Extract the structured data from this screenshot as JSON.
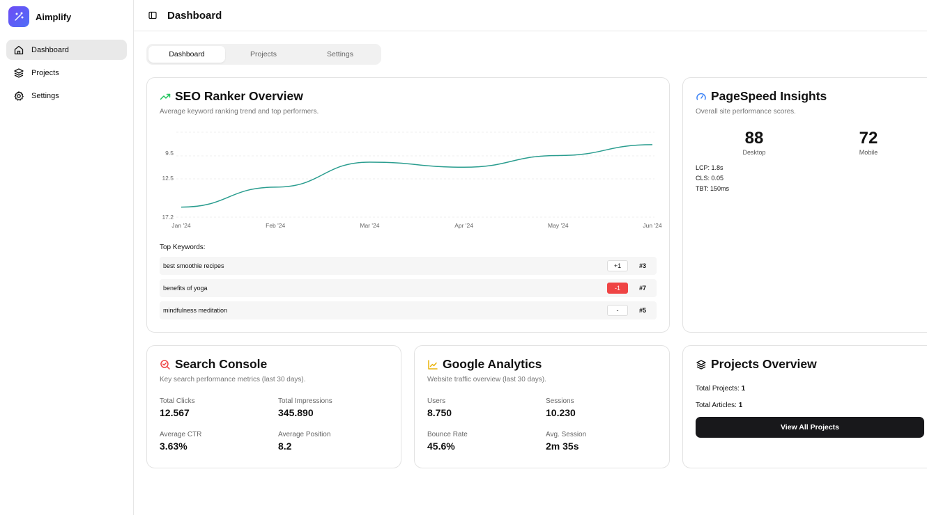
{
  "app": {
    "name": "Aimplify"
  },
  "sidebar": {
    "items": [
      {
        "label": "Dashboard",
        "icon": "home-icon",
        "active": true
      },
      {
        "label": "Projects",
        "icon": "layers-icon",
        "active": false
      },
      {
        "label": "Settings",
        "icon": "gear-icon",
        "active": false
      }
    ]
  },
  "header": {
    "title": "Dashboard"
  },
  "tabs": [
    {
      "label": "Dashboard",
      "active": true
    },
    {
      "label": "Projects",
      "active": false
    },
    {
      "label": "Settings",
      "active": false
    }
  ],
  "seo": {
    "title": "SEO Ranker Overview",
    "subtitle": "Average keyword ranking trend and top performers.",
    "keywords_heading": "Top Keywords:",
    "keywords": [
      {
        "name": "best smoothie recipes",
        "change": "+1",
        "rank": "#3",
        "negative": false
      },
      {
        "name": "benefits of yoga",
        "change": "-1",
        "rank": "#7",
        "negative": true
      },
      {
        "name": "mindfulness meditation",
        "change": "-",
        "rank": "#5",
        "negative": false
      }
    ]
  },
  "chart_data": {
    "type": "line",
    "x": [
      "Jan '24",
      "Feb '24",
      "Mar '24",
      "Apr '24",
      "May '24",
      "Jun '24"
    ],
    "series": [
      {
        "values": [
          16.0,
          13.6,
          10.6,
          11.2,
          9.8,
          8.5
        ]
      }
    ],
    "y_ticks": [
      "9.5",
      "12.5",
      "17.2"
    ],
    "ylim": [
      6.5,
      17.2
    ],
    "y_inverted": true,
    "grid": true,
    "color": "#2a9d8f"
  },
  "pagespeed": {
    "title": "PageSpeed Insights",
    "subtitle": "Overall site performance scores.",
    "scores": [
      {
        "value": "88",
        "label": "Desktop"
      },
      {
        "value": "72",
        "label": "Mobile"
      }
    ],
    "metrics": [
      "LCP: 1.8s",
      "CLS: 0.05",
      "TBT: 150ms"
    ]
  },
  "search_console": {
    "title": "Search Console",
    "subtitle": "Key search performance metrics (last 30 days).",
    "metrics": [
      {
        "label": "Total Clicks",
        "value": "12.567"
      },
      {
        "label": "Total Impressions",
        "value": "345.890"
      },
      {
        "label": "Average CTR",
        "value": "3.63%"
      },
      {
        "label": "Average Position",
        "value": "8.2"
      }
    ]
  },
  "analytics": {
    "title": "Google Analytics",
    "subtitle": "Website traffic overview (last 30 days).",
    "metrics": [
      {
        "label": "Users",
        "value": "8.750"
      },
      {
        "label": "Sessions",
        "value": "10.230"
      },
      {
        "label": "Bounce Rate",
        "value": "45.6%"
      },
      {
        "label": "Avg. Session",
        "value": "2m 35s"
      }
    ]
  },
  "projects_overview": {
    "title": "Projects Overview",
    "total_projects_label": "Total Projects:",
    "total_projects_value": "1",
    "total_articles_label": "Total Articles:",
    "total_articles_value": "1",
    "button_label": "View All Projects"
  },
  "colors": {
    "accent_green": "#22c55e",
    "line_teal": "#2a9d8f",
    "negative_red": "#ef4444",
    "brand_purple": "#6d4cf5",
    "pagespeed_blue": "#3b82f6",
    "analytics_amber": "#eab308"
  }
}
